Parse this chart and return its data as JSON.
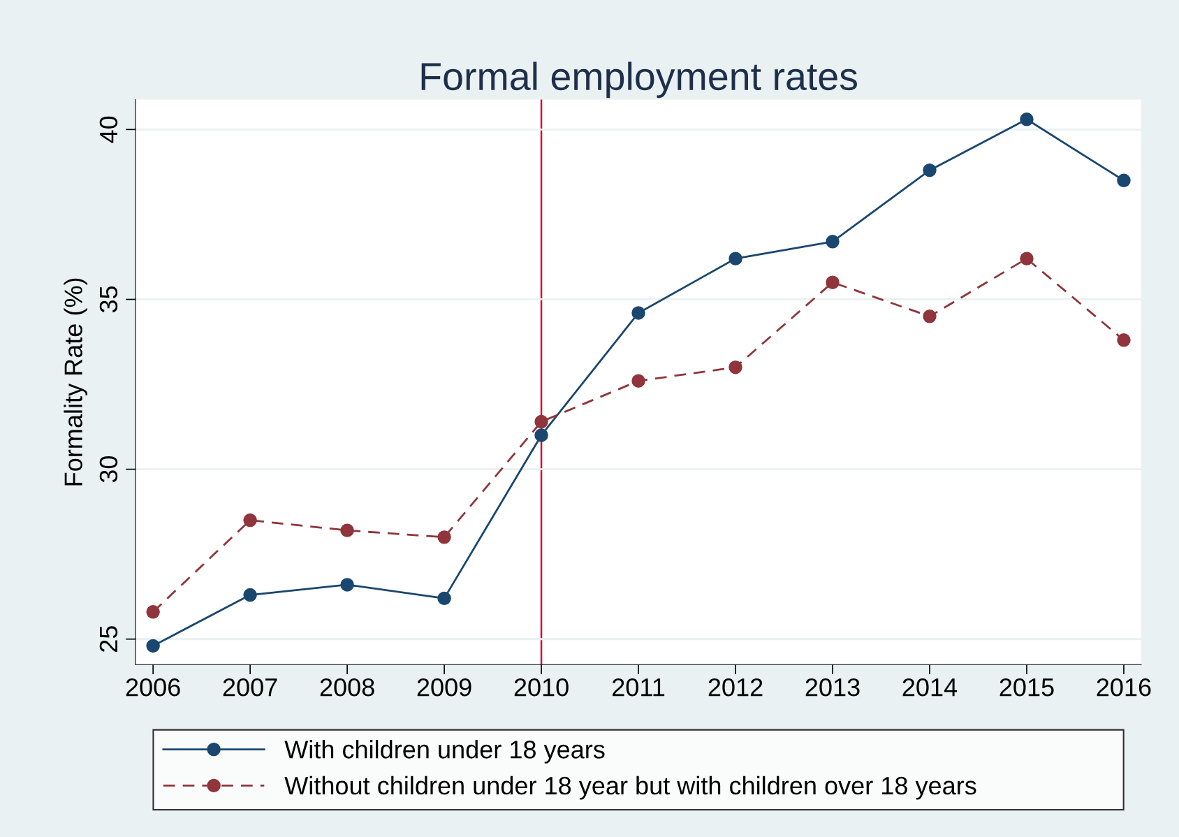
{
  "chart_data": {
    "type": "line",
    "title": "Formal employment rates",
    "ylabel": "Formality Rate (%)",
    "x": [
      2006,
      2007,
      2008,
      2009,
      2010,
      2011,
      2012,
      2013,
      2014,
      2015,
      2016
    ],
    "series": [
      {
        "name": "With children under 18 years",
        "color": "#1a476f",
        "line_style": "solid",
        "values": [
          24.8,
          26.3,
          26.6,
          26.2,
          31.0,
          34.6,
          36.2,
          36.7,
          38.8,
          40.3,
          38.5
        ]
      },
      {
        "name": "Without children under 18 year but with children over 18 years",
        "color": "#90353b",
        "line_style": "dashed",
        "values": [
          25.8,
          28.5,
          28.2,
          28.0,
          31.4,
          32.6,
          33.0,
          35.5,
          34.5,
          36.2,
          33.8
        ]
      }
    ],
    "marker": "circle",
    "xlim": [
      2005.82,
      2016.18
    ],
    "xticks": [
      2006,
      2007,
      2008,
      2009,
      2010,
      2011,
      2012,
      2013,
      2014,
      2015,
      2016
    ],
    "ylim": [
      24.25,
      40.88
    ],
    "yticks": [
      25,
      30,
      35,
      40
    ],
    "ref_lines": [
      {
        "axis": "x",
        "value": 2010,
        "color": "#d0103a"
      }
    ],
    "grid": "y",
    "legend": "bottom"
  }
}
